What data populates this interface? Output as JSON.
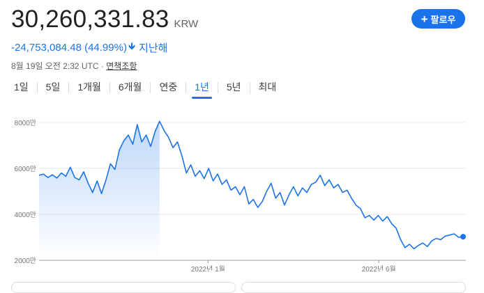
{
  "price": {
    "value": "30,260,331.83",
    "currency": "KRW"
  },
  "follow_button": {
    "label": "팔로우",
    "icon": "plus-icon"
  },
  "change": {
    "text": "-24,753,084.48 (44.99%)",
    "arrow_icon": "arrow-down-icon",
    "period": "지난해",
    "color": "#1a73e8"
  },
  "timestamp": {
    "text": "8월 19일 오전 2:32 UTC · ",
    "disclaimer": "면책조항"
  },
  "tabs": [
    {
      "label": "1일"
    },
    {
      "label": "5일"
    },
    {
      "label": "1개월"
    },
    {
      "label": "6개월"
    },
    {
      "label": "연중"
    },
    {
      "label": "1년",
      "active": true
    },
    {
      "label": "5년"
    },
    {
      "label": "최대"
    }
  ],
  "chart_data": {
    "type": "area",
    "ytick_labels": [
      "8000만",
      "6000만",
      "4000만",
      "2000만"
    ],
    "yticks": [
      80000000,
      60000000,
      40000000,
      20000000
    ],
    "ylim": [
      20000000,
      86000000
    ],
    "xtick_labels": [
      "2022년 1월",
      "2022년 6월"
    ],
    "xtick_positions": [
      0.396,
      0.796
    ],
    "grid": true,
    "line_color": "#1a73e8",
    "series": [
      {
        "values": [
          57000000,
          57500000,
          56000000,
          57200000,
          55800000,
          58000000,
          56500000,
          60500000,
          56000000,
          55000000,
          58500000,
          53500000,
          49500000,
          54500000,
          49000000,
          55000000,
          62000000,
          59500000,
          68000000,
          72000000,
          74500000,
          70500000,
          79000000,
          71500000,
          74500000,
          69500000,
          76000000,
          80500000,
          76500000,
          73500000,
          69000000,
          71500000,
          65500000,
          58000000,
          61500000,
          56500000,
          59000000,
          55500000,
          60000000,
          54500000,
          57500000,
          53000000,
          55000000,
          50500000,
          52000000,
          48500000,
          52000000,
          44500000,
          46500000,
          43000000,
          45500000,
          50000000,
          53500000,
          47000000,
          49500000,
          44000000,
          48500000,
          52000000,
          48000000,
          51500000,
          49500000,
          53000000,
          54000000,
          57000000,
          52500000,
          55000000,
          51500000,
          53000000,
          49500000,
          50500000,
          47000000,
          44000000,
          42500000,
          38500000,
          39500000,
          37500000,
          39500000,
          37000000,
          39000000,
          36000000,
          34000000,
          29000000,
          25500000,
          27000000,
          25000000,
          26500000,
          27500000,
          26000000,
          28500000,
          29500000,
          29000000,
          30500000,
          31000000,
          31500000,
          30000000,
          30260000
        ]
      }
    ]
  }
}
